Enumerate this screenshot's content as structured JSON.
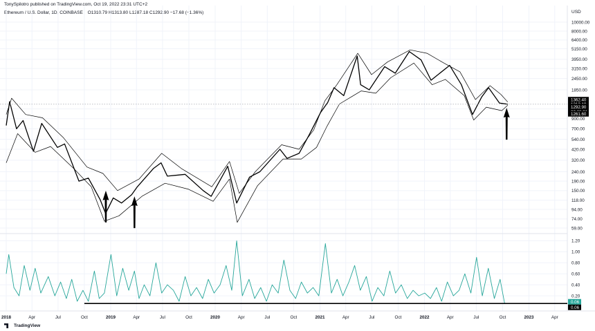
{
  "header": {
    "publisher": "TonySpilotro published on TradingView.com, Oct 19, 2022 23:31 UTC+2",
    "symbol": "Ethereum / U.S. Dollar, 1D, COINBASE",
    "ohlc": "O1310.79  H1313.80  L1287.18  C1292.90  −17.68 (−1.36%)"
  },
  "footer": {
    "logo_text": "TradingView"
  },
  "colors": {
    "price": "#000000",
    "bands": "#000000",
    "oscillator": "#26a69a",
    "grid": "#f0f3fa",
    "axis_text": "#131722",
    "label_bg": "#000000",
    "osc_label_bg": "#26a69a"
  },
  "chart_data": [
    {
      "type": "line",
      "scale": "log",
      "currency": "USD",
      "y_ticks": [
        "10000.00",
        "8000.00",
        "6400.00",
        "5150.00",
        "3950.00",
        "3150.00",
        "2450.00",
        "1850.00",
        "1150.00",
        "900.00",
        "700.00",
        "540.00",
        "420.00",
        "320.00",
        "240.00",
        "190.00",
        "150.00",
        "118.00",
        "94.00",
        "74.00",
        "59.00"
      ],
      "x_ticks": [
        "2018",
        "Apr",
        "Jul",
        "Oct",
        "2019",
        "Apr",
        "Jul",
        "Oct",
        "2020",
        "Apr",
        "Jul",
        "Oct",
        "2021",
        "Apr",
        "Jul",
        "Oct",
        "2022",
        "Apr",
        "Jul",
        "Oct",
        "2023",
        "Apr"
      ],
      "price_labels": [
        "1362.40",
        "1312.10",
        "1292.90",
        "02:28:01",
        "1261.60"
      ],
      "series": [
        {
          "role": "close",
          "x": [
            "2018-01-01",
            "2018-01-13",
            "2018-02-06",
            "2018-03-01",
            "2018-04-06",
            "2018-05-05",
            "2018-06-29",
            "2018-07-24",
            "2018-09-12",
            "2018-10-15",
            "2018-11-25",
            "2018-12-14",
            "2019-01-10",
            "2019-02-08",
            "2019-03-15",
            "2019-04-04",
            "2019-05-30",
            "2019-06-26",
            "2019-07-18",
            "2019-09-18",
            "2019-11-20",
            "2019-12-18",
            "2020-02-14",
            "2020-03-16",
            "2020-04-30",
            "2020-06-05",
            "2020-08-14",
            "2020-09-08",
            "2020-10-20",
            "2020-11-24",
            "2021-01-03",
            "2021-01-28",
            "2021-02-19",
            "2021-03-25",
            "2021-05-11",
            "2021-05-23",
            "2021-06-22",
            "2021-08-15",
            "2021-09-21",
            "2021-11-09",
            "2021-12-20",
            "2022-01-24",
            "2022-03-30",
            "2022-05-10",
            "2022-06-18",
            "2022-07-20",
            "2022-08-13",
            "2022-09-20",
            "2022-10-19"
          ],
          "y": [
            760,
            1380,
            700,
            860,
            400,
            800,
            440,
            480,
            190,
            205,
            120,
            85,
            125,
            110,
            135,
            165,
            260,
            300,
            215,
            225,
            150,
            130,
            275,
            110,
            210,
            240,
            420,
            335,
            380,
            600,
            1050,
            1350,
            1950,
            1600,
            4300,
            2100,
            1850,
            3300,
            2800,
            4800,
            3900,
            2350,
            3400,
            2100,
            1000,
            1550,
            1950,
            1330,
            1293
          ]
        },
        {
          "role": "upper-band",
          "x": [
            "2018-01-01",
            "2018-01-20",
            "2018-03-10",
            "2018-05-08",
            "2018-07-20",
            "2018-10-10",
            "2018-12-05",
            "2019-01-25",
            "2019-04-10",
            "2019-06-28",
            "2019-09-05",
            "2019-12-20",
            "2020-02-20",
            "2020-03-25",
            "2020-05-20",
            "2020-08-20",
            "2020-10-20",
            "2020-12-10",
            "2021-01-18",
            "2021-03-01",
            "2021-05-13",
            "2021-06-30",
            "2021-08-25",
            "2021-11-12",
            "2022-01-10",
            "2022-03-10",
            "2022-05-05",
            "2022-06-28",
            "2022-08-18",
            "2022-09-25",
            "2022-10-19"
          ],
          "y": [
            1000,
            1500,
            1000,
            920,
            560,
            270,
            230,
            150,
            200,
            380,
            260,
            165,
            310,
            140,
            240,
            470,
            420,
            680,
            1400,
            2100,
            4600,
            2700,
            3700,
            5000,
            4600,
            3600,
            2900,
            1450,
            2050,
            1650,
            1362
          ]
        },
        {
          "role": "lower-band",
          "x": [
            "2018-01-01",
            "2018-02-10",
            "2018-04-12",
            "2018-06-05",
            "2018-08-25",
            "2018-10-25",
            "2018-12-10",
            "2019-01-30",
            "2019-04-20",
            "2019-07-10",
            "2019-09-30",
            "2019-12-25",
            "2020-02-20",
            "2020-03-18",
            "2020-05-28",
            "2020-08-25",
            "2020-10-28",
            "2020-12-20",
            "2021-01-26",
            "2021-03-10",
            "2021-05-25",
            "2021-07-15",
            "2021-09-05",
            "2021-11-25",
            "2022-01-28",
            "2022-03-15",
            "2022-05-20",
            "2022-06-22",
            "2022-08-05",
            "2022-09-28",
            "2022-10-19"
          ],
          "y": [
            300,
            620,
            390,
            450,
            260,
            165,
            70,
            80,
            130,
            180,
            155,
            115,
            200,
            68,
            170,
            330,
            330,
            440,
            750,
            1300,
            1800,
            1700,
            2500,
            3600,
            2100,
            2400,
            1600,
            870,
            1200,
            1100,
            1261
          ]
        }
      ]
    },
    {
      "type": "line",
      "y_ticks": [
        "1.20",
        "1.00",
        "0.80",
        "0.60",
        "0.40",
        "0.20"
      ],
      "last_labels": [
        "0.06",
        "0.06"
      ],
      "reference_level": 0.06,
      "series": [
        {
          "role": "oscillator",
          "x": [
            "2018-01-01",
            "2018-01-10",
            "2018-01-28",
            "2018-02-15",
            "2018-03-05",
            "2018-03-25",
            "2018-04-12",
            "2018-05-02",
            "2018-05-28",
            "2018-06-20",
            "2018-07-10",
            "2018-07-30",
            "2018-08-18",
            "2018-09-06",
            "2018-09-26",
            "2018-10-15",
            "2018-11-05",
            "2018-11-22",
            "2018-12-10",
            "2019-01-02",
            "2019-01-22",
            "2019-02-12",
            "2019-03-05",
            "2019-03-25",
            "2019-04-10",
            "2019-04-28",
            "2019-05-18",
            "2019-06-08",
            "2019-06-28",
            "2019-07-18",
            "2019-08-08",
            "2019-08-28",
            "2019-09-18",
            "2019-10-08",
            "2019-10-28",
            "2019-11-18",
            "2019-12-08",
            "2019-12-28",
            "2020-01-18",
            "2020-02-08",
            "2020-02-28",
            "2020-03-16",
            "2020-04-05",
            "2020-04-28",
            "2020-05-18",
            "2020-06-08",
            "2020-06-28",
            "2020-07-18",
            "2020-08-08",
            "2020-08-28",
            "2020-09-18",
            "2020-10-08",
            "2020-10-28",
            "2020-11-18",
            "2020-12-08",
            "2020-12-28",
            "2021-01-20",
            "2021-02-10",
            "2021-03-02",
            "2021-03-22",
            "2021-04-12",
            "2021-05-02",
            "2021-05-22",
            "2021-06-12",
            "2021-07-02",
            "2021-07-22",
            "2021-08-12",
            "2021-09-02",
            "2021-09-22",
            "2021-10-12",
            "2021-11-02",
            "2021-11-22",
            "2021-12-12",
            "2022-01-02",
            "2022-01-22",
            "2022-02-12",
            "2022-03-02",
            "2022-03-22",
            "2022-04-12",
            "2022-05-02",
            "2022-05-22",
            "2022-06-12",
            "2022-07-02",
            "2022-07-22",
            "2022-08-12",
            "2022-09-02",
            "2022-09-22",
            "2022-10-08",
            "2022-10-19"
          ],
          "y": [
            0.6,
            0.95,
            0.35,
            0.2,
            0.75,
            0.3,
            0.7,
            0.25,
            0.55,
            0.2,
            0.45,
            0.15,
            0.5,
            0.1,
            0.3,
            0.1,
            0.65,
            0.15,
            0.25,
            0.95,
            0.2,
            0.7,
            0.3,
            0.65,
            0.15,
            0.4,
            0.2,
            0.8,
            0.25,
            0.4,
            0.3,
            0.1,
            0.55,
            0.2,
            0.35,
            0.15,
            0.5,
            0.25,
            0.4,
            0.75,
            0.3,
            1.2,
            0.2,
            0.5,
            0.15,
            0.35,
            0.1,
            0.4,
            0.25,
            0.85,
            0.3,
            0.15,
            0.45,
            0.25,
            0.35,
            0.2,
            1.15,
            0.25,
            0.5,
            0.2,
            0.45,
            0.75,
            0.3,
            0.55,
            0.1,
            0.35,
            0.2,
            0.65,
            0.25,
            0.4,
            0.15,
            0.3,
            0.2,
            0.25,
            0.15,
            0.35,
            0.1,
            0.45,
            0.2,
            0.3,
            0.6,
            0.25,
            0.9,
            0.2,
            0.7,
            0.15,
            0.5,
            0.06,
            0.06
          ]
        }
      ]
    }
  ],
  "annotations": [
    {
      "type": "arrow-up",
      "date": "2018-12-15",
      "value": 150,
      "label": ""
    },
    {
      "type": "arrow-up",
      "date": "2019-03-25",
      "value": 130,
      "label": ""
    },
    {
      "type": "arrow-up",
      "date": "2022-10-15",
      "value": 1180,
      "label": ""
    }
  ]
}
